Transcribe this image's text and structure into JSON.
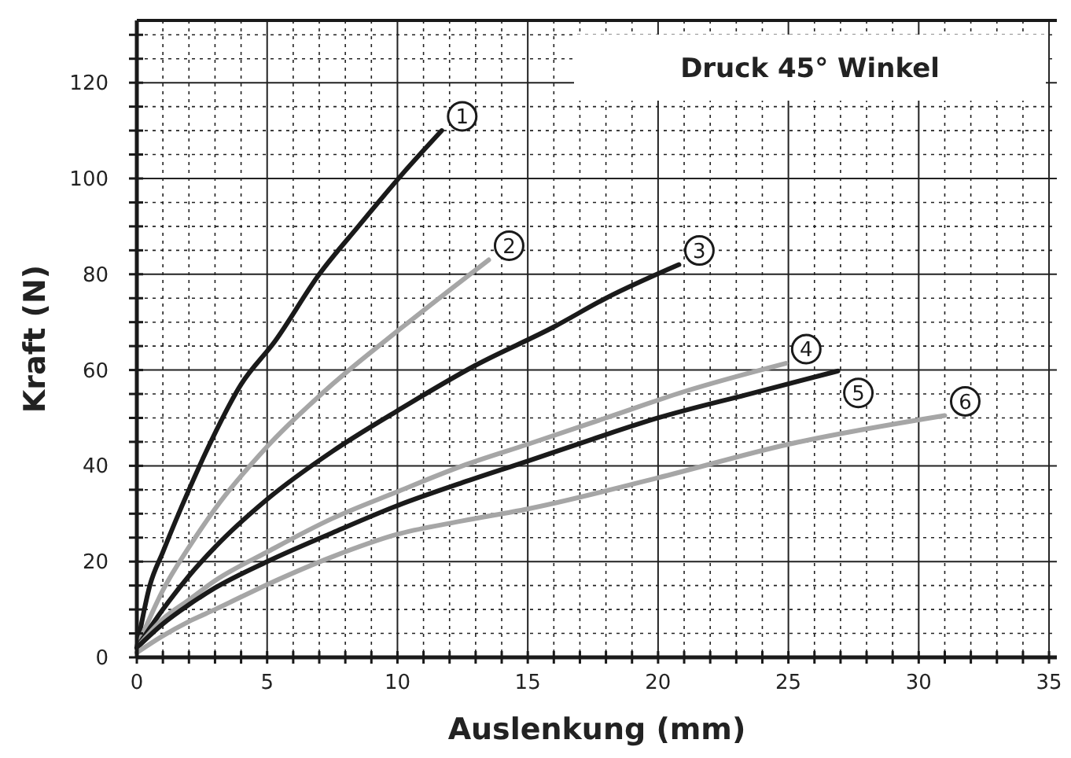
{
  "chart_data": {
    "type": "line",
    "title": "Druck 45° Winkel",
    "xlabel": "Auslenkung (mm)",
    "ylabel": "Kraft (N)",
    "xlim": [
      0,
      35.3
    ],
    "ylim": [
      0,
      133
    ],
    "xticks": [
      0,
      {
        "value": 1,
        "label": null
      },
      {
        "value": 2,
        "label": null
      },
      {
        "value": 3,
        "label": null
      },
      {
        "value": 4,
        "label": null
      },
      5,
      {
        "value": 6,
        "label": null
      },
      {
        "value": 7,
        "label": null
      },
      {
        "value": 8,
        "label": null
      },
      {
        "value": 9,
        "label": null
      },
      10,
      {
        "value": 11,
        "label": null
      },
      {
        "value": 12,
        "label": null
      },
      {
        "value": 13,
        "label": null
      },
      {
        "value": 14,
        "label": null
      },
      15,
      {
        "value": 16,
        "label": null
      },
      {
        "value": 17,
        "label": null
      },
      {
        "value": 18,
        "label": null
      },
      {
        "value": 19,
        "label": null
      },
      20,
      {
        "value": 21,
        "label": null
      },
      {
        "value": 22,
        "label": null
      },
      {
        "value": 23,
        "label": null
      },
      {
        "value": 24,
        "label": null
      },
      25,
      {
        "value": 26,
        "label": null
      },
      {
        "value": 27,
        "label": null
      },
      {
        "value": 28,
        "label": null
      },
      {
        "value": 29,
        "label": null
      },
      30,
      {
        "value": 31,
        "label": null
      },
      {
        "value": 32,
        "label": null
      },
      {
        "value": 33,
        "label": null
      },
      {
        "value": 34,
        "label": null
      },
      35
    ],
    "yticks": [
      0,
      {
        "value": 5,
        "label": null
      },
      {
        "value": 10,
        "label": null
      },
      {
        "value": 15,
        "label": null
      },
      20,
      {
        "value": 25,
        "label": null
      },
      {
        "value": 30,
        "label": null
      },
      {
        "value": 35,
        "label": null
      },
      40,
      {
        "value": 45,
        "label": null
      },
      {
        "value": 50,
        "label": null
      },
      {
        "value": 55,
        "label": null
      },
      60,
      {
        "value": 65,
        "label": null
      },
      {
        "value": 70,
        "label": null
      },
      {
        "value": 75,
        "label": null
      },
      80,
      {
        "value": 85,
        "label": null
      },
      {
        "value": 90,
        "label": null
      },
      {
        "value": 95,
        "label": null
      },
      100,
      {
        "value": 105,
        "label": null
      },
      {
        "value": 110,
        "label": null
      },
      {
        "value": 115,
        "label": null
      },
      120,
      {
        "value": 125,
        "label": null
      },
      {
        "value": 130,
        "label": null
      }
    ],
    "grid": true,
    "marker": "none",
    "line_style": "solid",
    "series": [
      {
        "name": "1",
        "color": "#1a1a1a",
        "x": [
          0,
          0.5,
          1,
          2,
          2.75,
          4,
          5.3,
          7,
          8.5,
          10.2,
          11.7
        ],
        "values": [
          2,
          15,
          22,
          35,
          44,
          57,
          66,
          80,
          90,
          101,
          110
        ]
      },
      {
        "name": "2",
        "color": "#a6a6a6",
        "x": [
          0,
          1,
          2,
          3,
          5,
          7.5,
          10.2,
          13.5
        ],
        "values": [
          2,
          14,
          23,
          31,
          44,
          57,
          69,
          83
        ]
      },
      {
        "name": "3",
        "color": "#1a1a1a",
        "x": [
          0,
          1,
          2,
          3,
          5,
          7.5,
          10,
          13,
          16,
          18,
          20.8
        ],
        "values": [
          2,
          10,
          17,
          23,
          33,
          43,
          51.5,
          61,
          69,
          75,
          82
        ]
      },
      {
        "name": "4",
        "color": "#a6a6a6",
        "x": [
          0,
          1,
          2,
          3,
          5,
          7.5,
          10,
          12.5,
          15,
          18,
          21,
          24.9
        ],
        "values": [
          2,
          8,
          12,
          16,
          22,
          29,
          34.6,
          40,
          44.5,
          50,
          55.5,
          61.4
        ]
      },
      {
        "name": "5",
        "color": "#1a1a1a",
        "x": [
          0,
          1,
          2,
          3,
          5,
          7.5,
          10,
          12.5,
          15,
          17.5,
          20,
          23.5,
          26.9
        ],
        "values": [
          2,
          7,
          11,
          14.5,
          20,
          26,
          31.7,
          36.5,
          41,
          45.6,
          50,
          55,
          59.8
        ]
      },
      {
        "name": "6",
        "color": "#a6a6a6",
        "x": [
          0,
          1,
          2,
          3,
          5,
          7.5,
          10,
          12.5,
          15,
          20,
          25,
          31
        ],
        "values": [
          1,
          4.5,
          7.5,
          10,
          15.2,
          21,
          25.7,
          28.5,
          31,
          37.5,
          44.5,
          50.5
        ]
      }
    ]
  }
}
